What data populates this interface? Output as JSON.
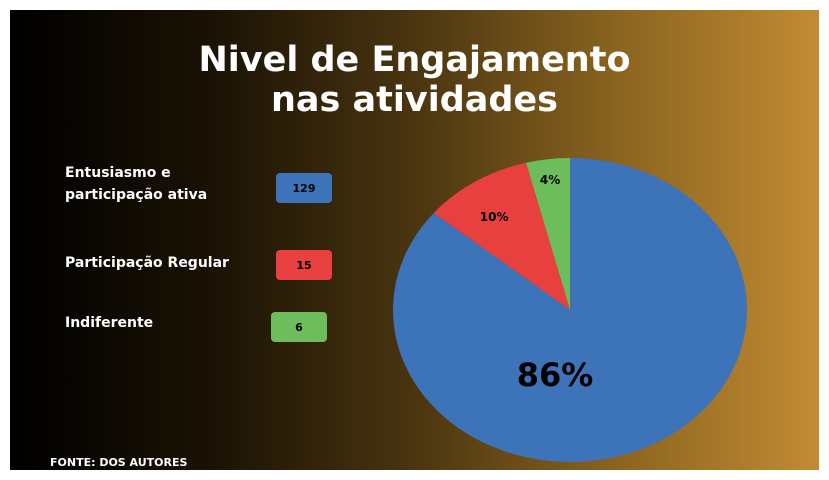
{
  "chart_data": {
    "type": "pie",
    "title": "Nivel de Engajamento nas atividades",
    "categories": [
      "Entusiasmo e participação ativa",
      "Participação Regular",
      "Indiferente"
    ],
    "counts": [
      129,
      15,
      6
    ],
    "values": [
      86,
      10,
      4
    ],
    "value_labels": [
      "86%",
      "10%",
      "4%"
    ],
    "colors": [
      "#3d73b9",
      "#e8403e",
      "#6dbd5c"
    ],
    "source": "FONTE: DOS AUTORES"
  }
}
